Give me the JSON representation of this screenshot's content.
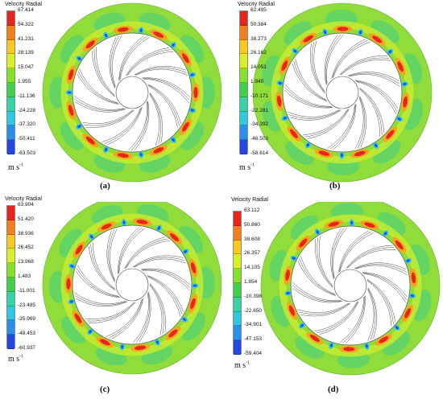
{
  "legend_title": "Velocity Radial",
  "unit": {
    "base": "m s",
    "exp": "-1"
  },
  "colors": [
    "#e4261d",
    "#f27f1b",
    "#f7c81e",
    "#d9ef27",
    "#84e12a",
    "#3fcf4b",
    "#37d2a6",
    "#2ec8e2",
    "#2a8fea",
    "#2546e2"
  ],
  "panels": [
    {
      "caption": "(a)",
      "ticks": [
        "67.414",
        "54.322",
        "41.231",
        "28.139",
        "15.047",
        "1.955",
        "-11.136",
        "-24.228",
        "-37.320",
        "-50.411",
        "-63.503"
      ]
    },
    {
      "caption": "(b)",
      "ticks": [
        "62.495",
        "50.384",
        "38.273",
        "26.162",
        "14.051",
        "1.940",
        "-10.171",
        "-22.281",
        "-34.392",
        "-46.503",
        "-58.614"
      ]
    },
    {
      "caption": "(c)",
      "ticks": [
        "63.904",
        "51.420",
        "38.936",
        "26.452",
        "13.968",
        "1.483",
        "-11.001",
        "-23.485",
        "-35.969",
        "-48.453",
        "-60.937"
      ]
    },
    {
      "caption": "(d)",
      "ticks": [
        "63.112",
        "50.860",
        "38.608",
        "26.357",
        "14.105",
        "1.854",
        "-10.398",
        "-22.650",
        "-34.901",
        "-47.153",
        "-59.404"
      ]
    }
  ]
}
